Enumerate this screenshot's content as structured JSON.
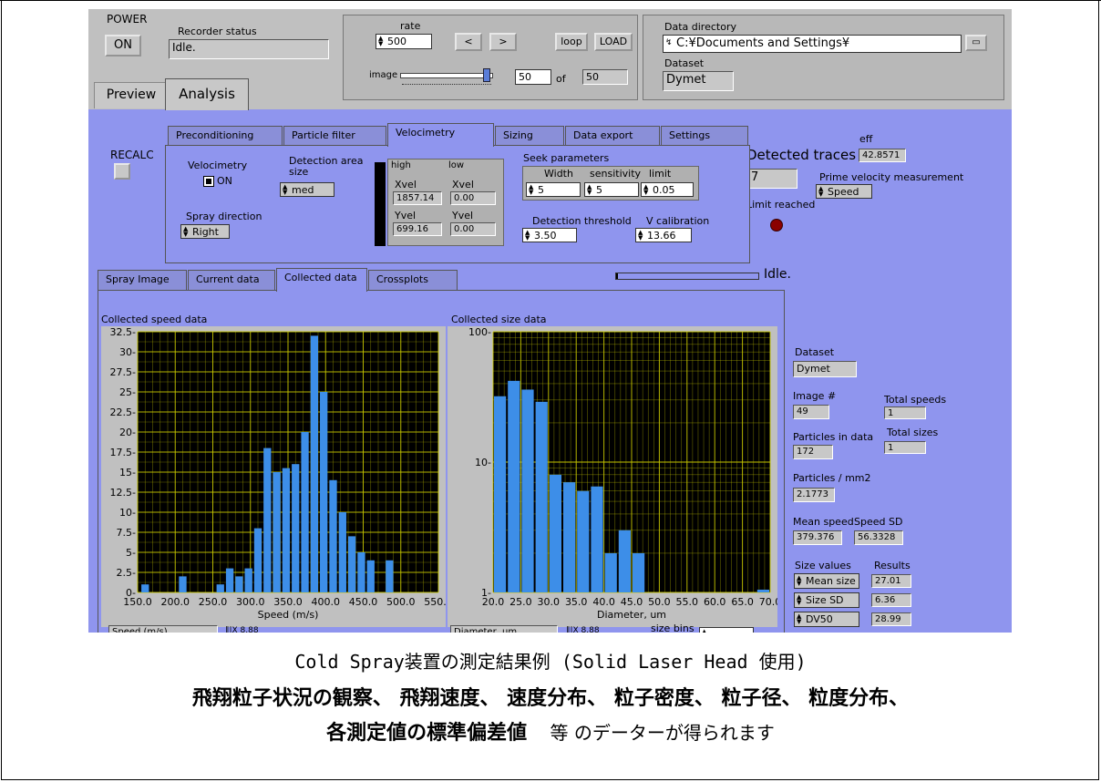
{
  "power": {
    "label": "POWER",
    "button": "ON"
  },
  "recorder": {
    "label": "Recorder status",
    "value": "Idle."
  },
  "rate": {
    "label": "rate",
    "value": "500"
  },
  "nav": {
    "prev": "<",
    "next": ">",
    "loop": "loop",
    "load": "LOAD"
  },
  "image": {
    "label": "image",
    "current": "50",
    "of_label": "of",
    "total": "50",
    "slider_fraction": 0.95
  },
  "data_directory": {
    "label": "Data directory",
    "value": "C:¥Documents and Settings¥"
  },
  "dataset_top": {
    "label": "Dataset",
    "value": "Dymet"
  },
  "main_tabs": [
    {
      "label": "Preview"
    },
    {
      "label": "Analysis"
    }
  ],
  "recalc": {
    "label": "RECALC"
  },
  "analysis_tabs": [
    {
      "label": "Preconditioning"
    },
    {
      "label": "Particle filter"
    },
    {
      "label": "Velocimetry"
    },
    {
      "label": "Sizing"
    },
    {
      "label": "Data export"
    },
    {
      "label": "Settings"
    }
  ],
  "velocimetry": {
    "label": "Velocimetry",
    "on_label": "ON",
    "detection_area": {
      "label1": "Detection area",
      "label2": "size",
      "value": "med"
    },
    "spray_direction": {
      "label": "Spray direction",
      "value": "Right"
    },
    "limits": {
      "high_label": "high",
      "low_label": "low",
      "xvel_label": "Xvel",
      "yvel_label": "Yvel",
      "xvel_high": "1857.14",
      "xvel_low": "0.00",
      "yvel_high": "699.16",
      "yvel_low": "0.00"
    },
    "seek": {
      "label": "Seek parameters",
      "width_label": "Width",
      "sensitivity_label": "sensitivity",
      "limit_label": "limit",
      "width": "5",
      "sensitivity": "5",
      "limit": "0.05"
    },
    "detection_threshold": {
      "label": "Detection threshold",
      "value": "3.50"
    },
    "v_calibration": {
      "label": "V calibration",
      "value": "13.66"
    }
  },
  "detected": {
    "eff_label": "eff",
    "eff_value": "42.8571",
    "traces_label": "Detected traces",
    "traces_value": "7",
    "prime_label": "Prime velocity measurement",
    "prime_value": "Speed",
    "limit_reached_label": "Limit reached"
  },
  "data_tabs": [
    {
      "label": "Spray Image"
    },
    {
      "label": "Current data"
    },
    {
      "label": "Collected data"
    },
    {
      "label": "Crossplots"
    }
  ],
  "status_text": "Idle.",
  "speed_chart_title": "Collected speed data",
  "size_chart_title": "Collected size data",
  "right_panel": {
    "dataset_label": "Dataset",
    "dataset_value": "Dymet",
    "image_label": "Image #",
    "image_value": "49",
    "total_speeds_label": "Total speeds",
    "total_speeds_value": "1",
    "particles_label": "Particles in data",
    "particles_value": "172",
    "total_sizes_label": "Total sizes",
    "total_sizes_value": "1",
    "density_label": "Particles / mm2",
    "density_value": "2.1773",
    "mean_speed_label": "Mean speed",
    "mean_speed_value": "379.376",
    "speed_sd_label": "Speed SD",
    "speed_sd_value": "56.3328",
    "size_values_label": "Size values",
    "results_label": "Results",
    "size_rows": [
      {
        "name": "Mean size",
        "value": "27.01"
      },
      {
        "name": "Size SD",
        "value": "6.36"
      },
      {
        "name": "DV50",
        "value": "28.99"
      }
    ]
  },
  "bottom_strip": {
    "speed_label": "Speed (m/s)",
    "diameter_label": "Diameter, um",
    "size_bins_label": "size bins"
  },
  "caption": {
    "line1": "Cold Spray装置の測定結果例 (Solid Laser Head 使用)",
    "line2": "飛翔粒子状況の観察、 飛翔速度、 速度分布、 粒子密度、 粒子径、 粒度分布、",
    "line3_bold": "各測定値の標準偏差値",
    "line3_rest": "等 のデーターが得られます"
  },
  "colors": {
    "bar": "#3d8ee8",
    "plot_bg": "#000000",
    "grid": "#c8c800",
    "panel": "#8f95ee",
    "window": "#c0c0c0"
  },
  "chart_data": [
    {
      "type": "bar",
      "title": "Collected speed data",
      "xlabel": "Speed (m/s)",
      "ylabel": "",
      "xlim": [
        150,
        550
      ],
      "ylim": [
        0,
        32.5
      ],
      "bin_width": 12.5,
      "x": [
        160,
        185,
        210,
        235,
        260,
        272.5,
        285,
        297.5,
        310,
        322.5,
        335,
        347.5,
        360,
        372.5,
        385,
        397.5,
        410,
        422.5,
        435,
        447.5,
        460,
        472.5,
        485,
        497.5,
        510,
        522.5,
        535
      ],
      "values": [
        1,
        0,
        2,
        0,
        1,
        3,
        2,
        3,
        8,
        18,
        15,
        15.5,
        16,
        20,
        32,
        25,
        14,
        10,
        7,
        5,
        4,
        0,
        4,
        0,
        0,
        0,
        0
      ],
      "yticks": [
        "0-",
        "2.5-",
        "5-",
        "7.5-",
        "10-",
        "12.5-",
        "15-",
        "17.5-",
        "20-",
        "22.5-",
        "25-",
        "27.5-",
        "30-",
        "32.5-"
      ],
      "xticks": [
        "150.0",
        "200.0",
        "250.0",
        "300.0",
        "350.0",
        "400.0",
        "450.0",
        "500.0",
        "550.0"
      ],
      "grid": true
    },
    {
      "type": "bar",
      "title": "Collected size data",
      "xlabel": "Diameter, um",
      "ylabel": "",
      "scale": "log",
      "xlim": [
        20,
        70
      ],
      "ylim": [
        1,
        100
      ],
      "bin_width": 2.5,
      "x": [
        21.25,
        23.75,
        26.25,
        28.75,
        31.25,
        33.75,
        36.25,
        38.75,
        41.25,
        43.75,
        46.25,
        48.75,
        51.25,
        53.75,
        56.25,
        58.75,
        61.25,
        63.75,
        66.25,
        68.75
      ],
      "values": [
        32,
        42,
        36,
        29,
        8,
        7,
        6,
        6.5,
        2,
        3,
        2,
        1,
        1,
        1,
        1,
        1,
        1,
        1,
        1,
        1.05
      ],
      "yticks": [
        "100-",
        "10-",
        "1-"
      ],
      "xticks": [
        "20.0",
        "25.0",
        "30.0",
        "35.0",
        "40.0",
        "45.0",
        "50.0",
        "55.0",
        "60.0",
        "65.0",
        "70.0"
      ],
      "grid": true
    }
  ]
}
